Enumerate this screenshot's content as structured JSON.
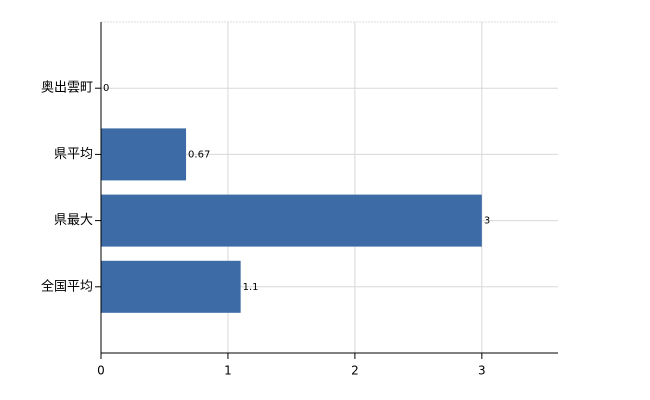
{
  "chart_data": {
    "type": "bar",
    "orientation": "horizontal",
    "categories": [
      "奥出雲町",
      "県平均",
      "県最大",
      "全国平均"
    ],
    "values": [
      0,
      0.67,
      3,
      1.1
    ],
    "color": "#3c6ba5",
    "xlim": [
      0,
      3.6
    ],
    "xticks": [
      0,
      1,
      2,
      3
    ],
    "grid": true
  }
}
